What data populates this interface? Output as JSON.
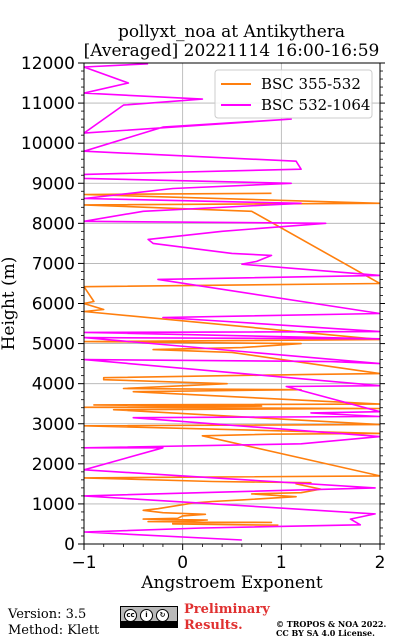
{
  "title": {
    "line1": "pollyxt_noa at Antikythera",
    "line2": "[Averaged] 20221114 16:00-16:59"
  },
  "footer": {
    "version": "Version: 3.5",
    "method": "Method: Klett",
    "preliminary_line1": "Preliminary",
    "preliminary_line2": "Results.",
    "copyright_line1": "© TROPOS & NOA 2022.",
    "copyright_line2": "CC BY SA 4.0 License.",
    "license_badge_text": "BY SA"
  },
  "colors": {
    "bsc_355_532": "#ff7f0e",
    "bsc_532_1064": "#ff00ff",
    "grid": "#b0b0b0",
    "prelim": "#e03030"
  },
  "chart_data": {
    "type": "line",
    "title": "pollyxt_noa at Antikythera\n[Averaged] 20221114 16:00-16:59",
    "xlabel": "Angstroem Exponent",
    "ylabel": "Height (m)",
    "xlim": [
      -1,
      2
    ],
    "ylim": [
      0,
      12000
    ],
    "xticks": [
      -1,
      0,
      1,
      2
    ],
    "xtick_labels": [
      "−1",
      "0",
      "1",
      "2"
    ],
    "yticks": [
      0,
      1000,
      2000,
      3000,
      4000,
      5000,
      6000,
      7000,
      8000,
      9000,
      10000,
      11000,
      12000
    ],
    "ytick_labels": [
      "0",
      "1000",
      "2000",
      "3000",
      "4000",
      "5000",
      "6000",
      "7000",
      "8000",
      "9000",
      "10000",
      "11000",
      "12000"
    ],
    "grid": true,
    "legend_position": "top-right",
    "series": [
      {
        "name": "BSC 355-532",
        "color": "#ff7f0e",
        "points": [
          [
            0.97,
            470
          ],
          [
            -0.1,
            500
          ],
          [
            -0.1,
            530
          ],
          [
            0.9,
            540
          ],
          [
            -0.35,
            560
          ],
          [
            0.1,
            580
          ],
          [
            0.25,
            600
          ],
          [
            -0.4,
            620
          ],
          [
            -0.05,
            640
          ],
          [
            0.0,
            700
          ],
          [
            0.23,
            740
          ],
          [
            -0.2,
            780
          ],
          [
            -0.4,
            840
          ],
          [
            -0.25,
            880
          ],
          [
            0.0,
            980
          ],
          [
            0.1,
            1020
          ],
          [
            0.3,
            1060
          ],
          [
            0.6,
            1100
          ],
          [
            1.15,
            1180
          ],
          [
            0.7,
            1250
          ],
          [
            1.2,
            1280
          ],
          [
            1.4,
            1370
          ],
          [
            1.15,
            1500
          ],
          [
            1.3,
            1530
          ],
          [
            0.3,
            1560
          ],
          [
            -1.0,
            1650
          ],
          [
            2.0,
            1700
          ],
          [
            0.2,
            2700
          ],
          [
            0.9,
            2740
          ],
          [
            2.0,
            2760
          ],
          [
            -1.0,
            2950
          ],
          [
            2.0,
            2980
          ],
          [
            -0.7,
            3350
          ],
          [
            2.0,
            3380
          ],
          [
            -1.0,
            3410
          ],
          [
            0.8,
            3440
          ],
          [
            -0.9,
            3470
          ],
          [
            2.0,
            3490
          ],
          [
            -0.5,
            3800
          ],
          [
            1.2,
            3850
          ],
          [
            -0.6,
            3880
          ],
          [
            0.45,
            4000
          ],
          [
            -0.8,
            4100
          ],
          [
            -0.8,
            4150
          ],
          [
            0.5,
            4200
          ],
          [
            1.3,
            4230
          ],
          [
            2.0,
            4250
          ],
          [
            0.5,
            4780
          ],
          [
            -0.3,
            4850
          ],
          [
            0.6,
            4900
          ],
          [
            1.2,
            5000
          ],
          [
            -1.0,
            5050
          ],
          [
            2.0,
            5100
          ],
          [
            -1.0,
            5800
          ],
          [
            -0.8,
            5850
          ],
          [
            -1.0,
            6000
          ],
          [
            -0.9,
            6050
          ],
          [
            -1.0,
            6420
          ],
          [
            2.0,
            6500
          ],
          [
            0.7,
            8300
          ],
          [
            -1.0,
            8460
          ],
          [
            2.0,
            8500
          ],
          [
            -1.0,
            8720
          ],
          [
            0.9,
            8750
          ]
        ]
      },
      {
        "name": "BSC 532-1064",
        "color": "#ff00ff",
        "points": [
          [
            0.6,
            100
          ],
          [
            -1.0,
            300
          ],
          [
            0.2,
            400
          ],
          [
            1.8,
            480
          ],
          [
            1.7,
            620
          ],
          [
            1.95,
            750
          ],
          [
            -1.0,
            1200
          ],
          [
            1.95,
            1400
          ],
          [
            -1.0,
            1850
          ],
          [
            -0.2,
            2400
          ],
          [
            -1.0,
            2400
          ],
          [
            1.2,
            2500
          ],
          [
            2.0,
            2680
          ],
          [
            -0.5,
            3150
          ],
          [
            2.0,
            3180
          ],
          [
            1.3,
            3270
          ],
          [
            2.0,
            3300
          ],
          [
            1.05,
            3930
          ],
          [
            2.0,
            3950
          ],
          [
            -1.0,
            4600
          ],
          [
            1.5,
            4550
          ],
          [
            2.0,
            4500
          ],
          [
            -1.0,
            5150
          ],
          [
            2.0,
            5120
          ],
          [
            -1.0,
            5280
          ],
          [
            2.0,
            5300
          ],
          [
            0.45,
            5550
          ],
          [
            -0.2,
            5650
          ],
          [
            2.0,
            5750
          ],
          [
            -0.25,
            6600
          ],
          [
            2.0,
            6700
          ],
          [
            0.6,
            6980
          ],
          [
            0.75,
            7050
          ],
          [
            0.9,
            7200
          ],
          [
            0.5,
            7250
          ],
          [
            -0.3,
            7500
          ],
          [
            -0.35,
            7600
          ],
          [
            0.4,
            7800
          ],
          [
            1.45,
            8000
          ],
          [
            -1.0,
            8050
          ],
          [
            -0.4,
            8300
          ],
          [
            1.2,
            8500
          ],
          [
            -1.0,
            8620
          ],
          [
            -0.1,
            8870
          ],
          [
            1.1,
            9000
          ],
          [
            -1.0,
            9120
          ],
          [
            -1.0,
            9220
          ],
          [
            1.2,
            9350
          ],
          [
            1.15,
            9550
          ],
          [
            -1.0,
            9800
          ],
          [
            -0.2,
            10400
          ],
          [
            1.1,
            10600
          ],
          [
            -1.0,
            10250
          ],
          [
            -0.6,
            10950
          ],
          [
            0.2,
            11100
          ],
          [
            -1.0,
            11250
          ],
          [
            -0.55,
            11500
          ],
          [
            -1.0,
            11900
          ],
          [
            -0.35,
            11980
          ]
        ]
      }
    ]
  }
}
